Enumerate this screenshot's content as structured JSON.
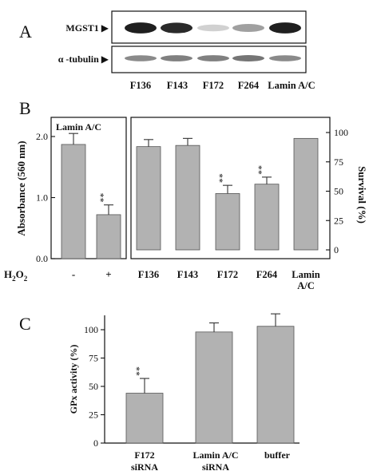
{
  "panel_a": {
    "letter": "A",
    "rows": [
      {
        "label": "MGST1 ▶",
        "intensities": [
          0.95,
          0.9,
          0.12,
          0.35,
          0.95
        ]
      },
      {
        "label": "α -tubulin ▶",
        "intensities": [
          0.45,
          0.5,
          0.5,
          0.55,
          0.45
        ]
      }
    ],
    "lanes": [
      "F136",
      "F143",
      "F172",
      "F264",
      "Lamin A/C"
    ]
  },
  "panel_b": {
    "letter": "B",
    "ylabel": "Absorbance (560 nm)",
    "ylabel_right": "Survival (%)",
    "h2o2_label": "H",
    "h2o2_sub1": "2",
    "h2o2_o": "O",
    "h2o2_sub2": "2",
    "colors": {
      "bar": "#b2b2b2",
      "edge": "#555555"
    }
  },
  "panel_c": {
    "letter": "C",
    "colors": {
      "bar": "#b2b2b2",
      "edge": "#555555"
    }
  },
  "chart_data": [
    {
      "type": "bar",
      "title": "Lamin A/C",
      "categories": [
        "-",
        "+"
      ],
      "values": [
        1.87,
        0.72
      ],
      "errors": [
        0.18,
        0.16
      ],
      "annotations": [
        "",
        "**"
      ],
      "ylabel": "Absorbance (560 nm)",
      "ylim": [
        0,
        2.2
      ],
      "yticks": [
        0.0,
        1.0,
        2.0
      ],
      "ytick_labels": [
        "0.0",
        "1.0",
        "2.0"
      ]
    },
    {
      "type": "bar",
      "categories": [
        "F136",
        "F143",
        "F172",
        "F264",
        "Lamin A/C"
      ],
      "values": [
        88,
        89,
        48,
        56,
        95
      ],
      "errors": [
        6,
        6,
        7,
        6,
        0
      ],
      "annotations": [
        "",
        "",
        "**",
        "**",
        ""
      ],
      "ylabel": "Survival (%)",
      "ylim": [
        0,
        110
      ],
      "yticks": [
        0,
        25,
        50,
        75,
        100
      ],
      "ytick_labels": [
        "0",
        "25",
        "50",
        "75",
        "100"
      ]
    },
    {
      "type": "bar",
      "categories": [
        "F172 siRNA",
        "Lamin A/C siRNA",
        "buffer"
      ],
      "values": [
        44,
        98,
        103
      ],
      "errors": [
        13,
        8,
        11
      ],
      "annotations": [
        "**",
        "",
        ""
      ],
      "ylabel": "GPx activity (%)",
      "ylim": [
        0,
        125
      ],
      "yticks": [
        0,
        25,
        50,
        75,
        100
      ],
      "ytick_labels": [
        "0",
        "25",
        "50",
        "75",
        "100"
      ]
    }
  ]
}
